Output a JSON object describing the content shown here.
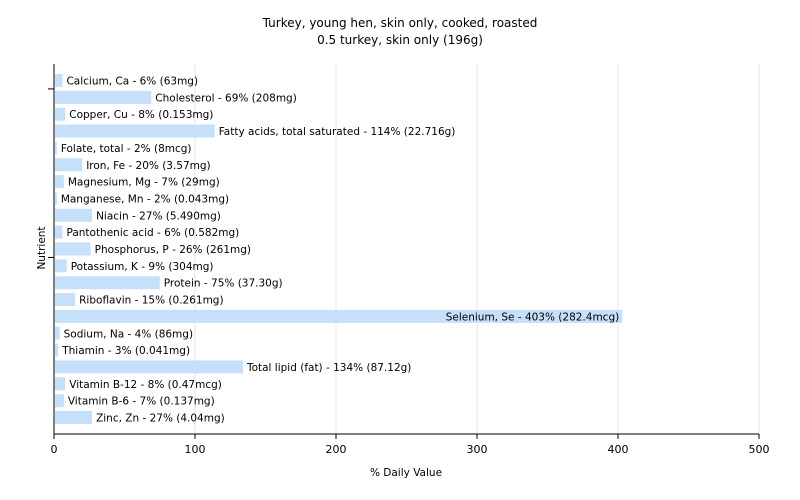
{
  "chart_data": {
    "type": "bar",
    "orientation": "horizontal",
    "title": "Turkey, young hen, skin only, cooked, roasted",
    "subtitle": "0.5 turkey, skin only (196g)",
    "xlabel": "% Daily Value",
    "ylabel": "Nutrient",
    "xlim": [
      0,
      500
    ],
    "xticks": [
      0,
      100,
      200,
      300,
      400,
      500
    ],
    "grid": true,
    "bar_color": "#c6dffb",
    "categories": [
      "Calcium, Ca",
      "Cholesterol",
      "Copper, Cu",
      "Fatty acids, total saturated",
      "Folate, total",
      "Iron, Fe",
      "Magnesium, Mg",
      "Manganese, Mn",
      "Niacin",
      "Pantothenic acid",
      "Phosphorus, P",
      "Potassium, K",
      "Protein",
      "Riboflavin",
      "Selenium, Se",
      "Sodium, Na",
      "Thiamin",
      "Total lipid (fat)",
      "Vitamin B-12",
      "Vitamin B-6",
      "Zinc, Zn"
    ],
    "values": [
      6,
      69,
      8,
      114,
      2,
      20,
      7,
      2,
      27,
      6,
      26,
      9,
      75,
      15,
      403,
      4,
      3,
      134,
      8,
      7,
      27
    ],
    "labels": [
      "Calcium, Ca - 6% (63mg)",
      "Cholesterol - 69% (208mg)",
      "Copper, Cu - 8% (0.153mg)",
      "Fatty acids, total saturated - 114% (22.716g)",
      "Folate, total - 2% (8mcg)",
      "Iron, Fe - 20% (3.57mg)",
      "Magnesium, Mg - 7% (29mg)",
      "Manganese, Mn - 2% (0.043mg)",
      "Niacin - 27% (5.490mg)",
      "Pantothenic acid - 6% (0.582mg)",
      "Phosphorus, P - 26% (261mg)",
      "Potassium, K - 9% (304mg)",
      "Protein - 75% (37.30g)",
      "Riboflavin - 15% (0.261mg)",
      "Selenium, Se - 403% (282.4mcg)",
      "Sodium, Na - 4% (86mg)",
      "Thiamin - 3% (0.041mg)",
      "Total lipid (fat) - 134% (87.12g)",
      "Vitamin B-12 - 8% (0.47mcg)",
      "Vitamin B-6 - 7% (0.137mg)",
      "Zinc, Zn - 27% (4.04mg)"
    ]
  }
}
